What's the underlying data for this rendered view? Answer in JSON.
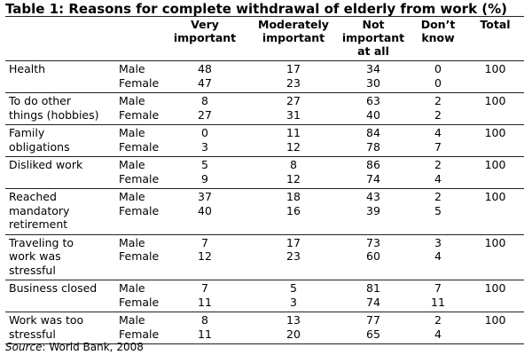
{
  "title": "Table 1: Reasons for complete withdrawal of elderly from work (%)",
  "headers": {
    "very": "Very\nimportant",
    "moderately": "Moderately\nimportant",
    "not": "Not\nimportant\nat all",
    "dont_know": "Don’t\nknow",
    "total": "Total"
  },
  "groups": [
    {
      "reason": "Health",
      "rows": [
        {
          "gender": "Male",
          "very": "48",
          "moderately": "17",
          "not": "34",
          "dont_know": "0",
          "total": "100"
        },
        {
          "gender": "Female",
          "very": "47",
          "moderately": "23",
          "not": "30",
          "dont_know": "0",
          "total": ""
        }
      ]
    },
    {
      "reason": "To do other\nthings (hobbies)",
      "rows": [
        {
          "gender": "Male",
          "very": "8",
          "moderately": "27",
          "not": "63",
          "dont_know": "2",
          "total": "100"
        },
        {
          "gender": "Female",
          "very": "27",
          "moderately": "31",
          "not": "40",
          "dont_know": "2",
          "total": ""
        }
      ]
    },
    {
      "reason": "Family\nobligations",
      "rows": [
        {
          "gender": "Male",
          "very": "0",
          "moderately": "11",
          "not": "84",
          "dont_know": "4",
          "total": "100"
        },
        {
          "gender": "Female",
          "very": "3",
          "moderately": "12",
          "not": "78",
          "dont_know": "7",
          "total": ""
        }
      ]
    },
    {
      "reason": "Disliked work",
      "rows": [
        {
          "gender": "Male",
          "very": "5",
          "moderately": "8",
          "not": "86",
          "dont_know": "2",
          "total": "100"
        },
        {
          "gender": "Female",
          "very": "9",
          "moderately": "12",
          "not": "74",
          "dont_know": "4",
          "total": ""
        }
      ]
    },
    {
      "reason": "Reached\nmandatory\nretirement",
      "rows": [
        {
          "gender": "Male",
          "very": "37",
          "moderately": "18",
          "not": "43",
          "dont_know": "2",
          "total": "100"
        },
        {
          "gender": "Female",
          "very": "40",
          "moderately": "16",
          "not": "39",
          "dont_know": "5",
          "total": ""
        }
      ]
    },
    {
      "reason": "Traveling to\nwork was\nstressful",
      "rows": [
        {
          "gender": "Male",
          "very": "7",
          "moderately": "17",
          "not": "73",
          "dont_know": "3",
          "total": "100"
        },
        {
          "gender": "Female",
          "very": "12",
          "moderately": "23",
          "not": "60",
          "dont_know": "4",
          "total": ""
        }
      ]
    },
    {
      "reason": "Business closed",
      "rows": [
        {
          "gender": "Male",
          "very": "7",
          "moderately": "5",
          "not": "81",
          "dont_know": "7",
          "total": "100"
        },
        {
          "gender": "Female",
          "very": "11",
          "moderately": "3",
          "not": "74",
          "dont_know": "11",
          "total": ""
        }
      ]
    },
    {
      "reason": "Work was too\nstressful",
      "rows": [
        {
          "gender": "Male",
          "very": "8",
          "moderately": "13",
          "not": "77",
          "dont_know": "2",
          "total": "100"
        },
        {
          "gender": "Female",
          "very": "11",
          "moderately": "20",
          "not": "65",
          "dont_know": "4",
          "total": ""
        }
      ]
    }
  ],
  "source": {
    "label": "Source",
    "text": ": World Bank, 2008"
  }
}
